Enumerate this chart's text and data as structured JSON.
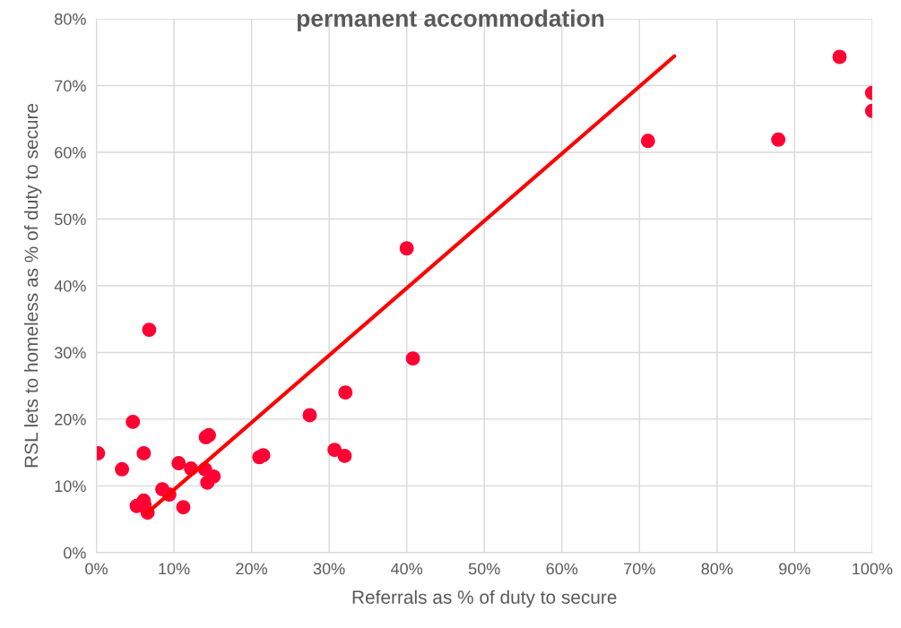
{
  "chart_data": {
    "type": "scatter",
    "title": "permanent accommodation",
    "xlabel": "Referrals as % of duty to secure",
    "ylabel": "RSL lets to homeless as % of duty to secure",
    "xlim": [
      0,
      100
    ],
    "ylim": [
      0,
      80
    ],
    "xticks": [
      {
        "value": 0,
        "label": "0%"
      },
      {
        "value": 10,
        "label": "10%"
      },
      {
        "value": 20,
        "label": "20%"
      },
      {
        "value": 30,
        "label": "30%"
      },
      {
        "value": 40,
        "label": "40%"
      },
      {
        "value": 50,
        "label": "50%"
      },
      {
        "value": 60,
        "label": "60%"
      },
      {
        "value": 70,
        "label": "70%"
      },
      {
        "value": 80,
        "label": "80%"
      },
      {
        "value": 90,
        "label": "90%"
      },
      {
        "value": 100,
        "label": "100%"
      }
    ],
    "yticks": [
      {
        "value": 0,
        "label": "0%"
      },
      {
        "value": 10,
        "label": "10%"
      },
      {
        "value": 20,
        "label": "20%"
      },
      {
        "value": 30,
        "label": "30%"
      },
      {
        "value": 40,
        "label": "40%"
      },
      {
        "value": 50,
        "label": "50%"
      },
      {
        "value": 60,
        "label": "60%"
      },
      {
        "value": 70,
        "label": "70%"
      },
      {
        "value": 80,
        "label": "80%"
      }
    ],
    "grid": true,
    "marker": "circle",
    "series": [
      {
        "color": "#ff0033",
        "x": [
          0.2,
          3.3,
          4.7,
          5.2,
          6.1,
          6.1,
          6.2,
          6.6,
          6.8,
          8.5,
          9.4,
          10.6,
          11.2,
          12.2,
          14.0,
          14.1,
          14.5,
          14.3,
          15.1,
          21.0,
          21.5,
          27.5,
          30.7,
          32.0,
          32.1,
          40.0,
          40.8,
          71.1,
          87.9,
          95.8,
          100,
          100
        ],
        "values": [
          14.9,
          12.5,
          19.6,
          7.0,
          14.9,
          7.8,
          7.1,
          6.0,
          33.4,
          9.5,
          8.7,
          13.4,
          6.8,
          12.6,
          12.5,
          17.3,
          17.6,
          10.5,
          11.4,
          14.3,
          14.6,
          20.6,
          15.4,
          14.5,
          24.0,
          45.6,
          29.1,
          61.7,
          61.9,
          74.3,
          68.9,
          66.2
        ]
      },
      {
        "type": "line",
        "color": "#ff0000",
        "marker": "none",
        "x": [
          6.5,
          74.5
        ],
        "values": [
          5.9,
          74.4
        ]
      }
    ]
  }
}
